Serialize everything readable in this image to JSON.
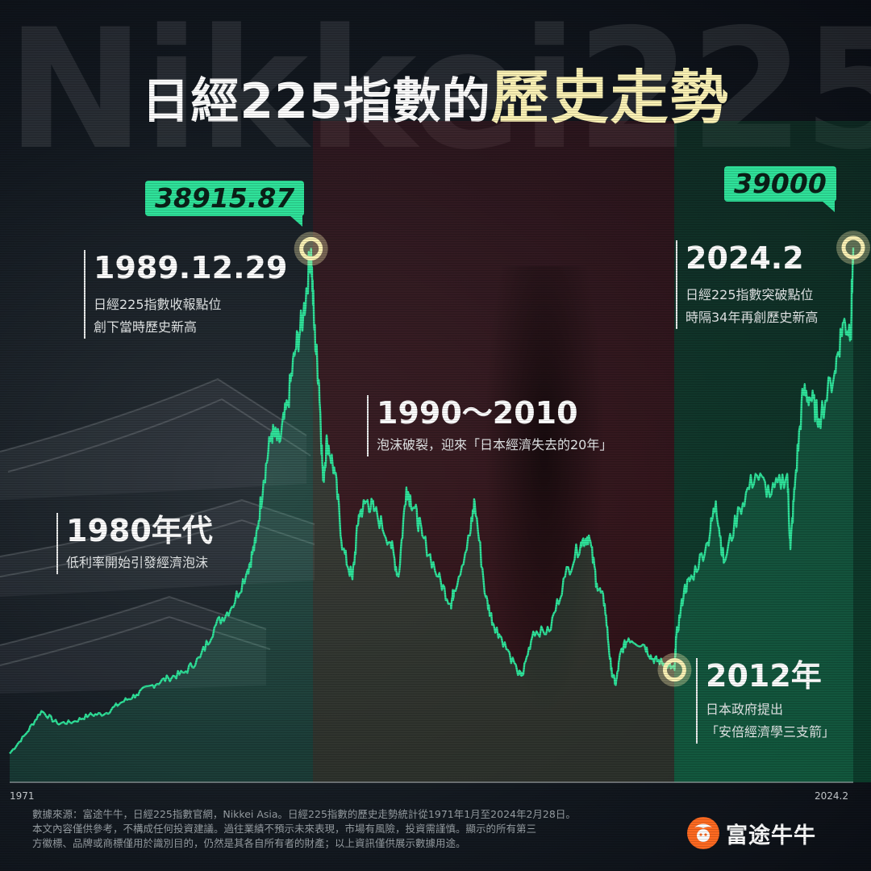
{
  "background_word": "Nikkei225",
  "title": {
    "part1": "日經225指數的",
    "part2": "歷史走勢"
  },
  "colors": {
    "line": "#2fe29a",
    "tag": "#2fe29a",
    "title_accent": "#fbf2b5",
    "band_red": "#5a141c",
    "band_green": "#0c5034"
  },
  "tags": {
    "peak_1989": "38915.87",
    "peak_2024": "39000"
  },
  "annotations": {
    "a1989": {
      "title": "1989.12.29",
      "line1": "日經225指數收報點位",
      "line2": "創下當時歷史新高"
    },
    "a1980s": {
      "title": "1980年代",
      "line1": "低利率開始引發經濟泡沫"
    },
    "a1990": {
      "title": "1990～2010",
      "line1": "泡沫破裂，迎來「日本經濟失去的20年」"
    },
    "a2024": {
      "title": "2024.2",
      "line1": "日經225指數突破點位",
      "line2": "時隔34年再創歷史新高"
    },
    "a2012": {
      "title": "2012年",
      "line1": "日本政府提出",
      "line2": "「安倍經濟學三支箭」"
    }
  },
  "footer": {
    "line1": "數據來源：富途牛牛，日經225指數官網，Nikkei Asia。日經225指數的歷史走勢統計從1971年1月至2024年2月28日。",
    "line2": "本文內容僅供參考，不構成任何投資建議。過往業績不預示未來表現，市場有風險，投資需謹慎。顯示的所有第三",
    "line3": "方徽標、品牌或商標僅用於識別目的，仍然是其各自所有者的財產；以上資訊僅供展示數據用途。"
  },
  "brand": {
    "name": "富途牛牛",
    "logo_icon": "futu-bull-logo-icon"
  },
  "chart_data": {
    "type": "line",
    "title": "日經225指數的歷史走勢",
    "xlabel": "",
    "ylabel": "",
    "x_tick_labels": [
      "1971",
      "2024.2"
    ],
    "xlim": [
      1971,
      2024.16
    ],
    "ylim": [
      0,
      40000
    ],
    "grid": false,
    "legend": "none",
    "series": [
      {
        "name": "",
        "x": [
          1971,
          1972,
          1973,
          1974,
          1975,
          1976,
          1977,
          1978,
          1979,
          1980,
          1981,
          1982,
          1983,
          1984,
          1985,
          1986,
          1986.5,
          1987,
          1987.5,
          1988,
          1988.5,
          1989,
          1989.5,
          1989.99,
          1990.2,
          1990.5,
          1990.75,
          1991,
          1991.5,
          1992,
          1992.6,
          1993,
          1993.5,
          1994,
          1995,
          1995.5,
          1996,
          1996.5,
          1997,
          1998,
          1998.8,
          1999,
          2000,
          2000.3,
          2001,
          2001.5,
          2002,
          2003,
          2003.3,
          2004,
          2005,
          2006,
          2007,
          2007.5,
          2008,
          2008.5,
          2008.9,
          2009.2,
          2009.5,
          2010,
          2011,
          2011.5,
          2012,
          2012.5,
          2012.9,
          2013,
          2013.5,
          2014,
          2015,
          2015.5,
          2016,
          2017,
          2018,
          2019,
          2020,
          2020.2,
          2020.5,
          2021,
          2021.5,
          2022,
          2023,
          2023.5,
          2024,
          2024.16
        ],
        "values": [
          2100,
          3500,
          5200,
          4300,
          4400,
          4900,
          5000,
          5800,
          6400,
          7100,
          7600,
          8000,
          9100,
          11500,
          12800,
          15500,
          17500,
          22000,
          25500,
          24800,
          27500,
          31500,
          34000,
          38915.87,
          33000,
          29000,
          22000,
          25000,
          22500,
          17000,
          14800,
          19500,
          20500,
          19800,
          17500,
          15000,
          21500,
          20000,
          18000,
          15000,
          13000,
          14000,
          18000,
          20500,
          13500,
          11500,
          10500,
          8000,
          7800,
          11000,
          11000,
          15000,
          17500,
          18000,
          14500,
          13000,
          8200,
          7100,
          9500,
          10500,
          10000,
          9000,
          8800,
          8500,
          8200,
          10500,
          14000,
          15000,
          17500,
          20500,
          16000,
          20000,
          22500,
          21000,
          22500,
          17000,
          22000,
          28500,
          28000,
          26500,
          30000,
          33500,
          33000,
          39000
        ]
      }
    ]
  }
}
